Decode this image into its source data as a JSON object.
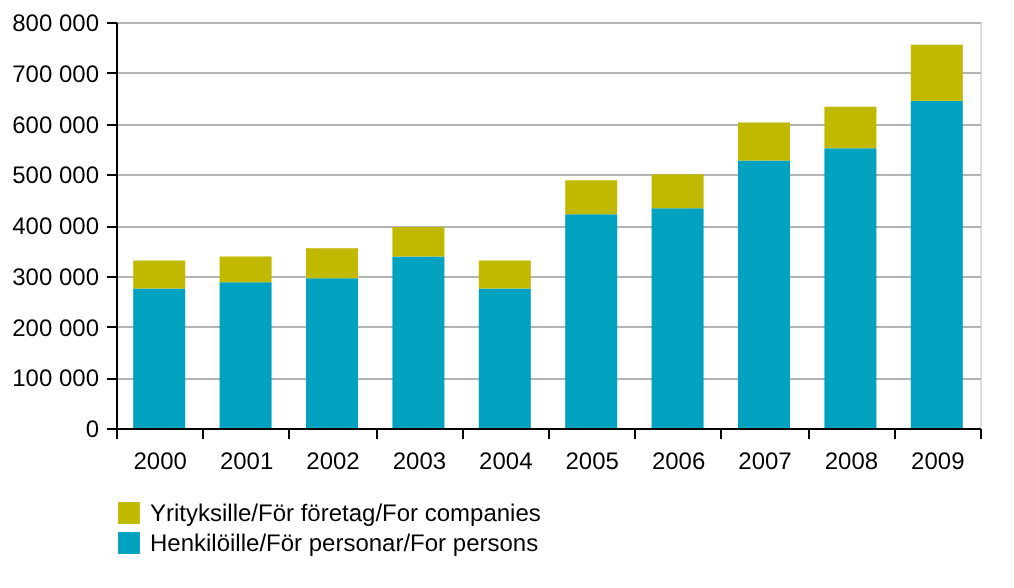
{
  "chart_data": {
    "type": "bar",
    "stacked": true,
    "categories": [
      "2000",
      "2001",
      "2002",
      "2003",
      "2004",
      "2005",
      "2006",
      "2007",
      "2008",
      "2009"
    ],
    "series": [
      {
        "name": "Henkilöille/För personar/For persons",
        "color": "#00a2c0",
        "values": [
          275000,
          287000,
          295000,
          338000,
          275000,
          421000,
          433000,
          527000,
          551000,
          645000
        ]
      },
      {
        "name": "Yrityksille/För företag/For companies",
        "color": "#c0b900",
        "values": [
          55000,
          51000,
          59000,
          58000,
          55000,
          67000,
          67000,
          75000,
          82000,
          110000
        ]
      }
    ],
    "ylim": [
      0,
      800000
    ],
    "yticks": [
      0,
      {
        "value": 100000,
        "label": "100 000"
      },
      {
        "value": 200000,
        "label": "200 000"
      },
      {
        "value": 300000,
        "label": "300 000"
      },
      {
        "value": 400000,
        "label": "400 000"
      },
      {
        "value": 500000,
        "label": "500 000"
      },
      {
        "value": 600000,
        "label": "600 000"
      },
      {
        "value": 700000,
        "label": "700 000"
      },
      {
        "value": 800000,
        "label": "800 000"
      }
    ],
    "grid": "y",
    "legend": "bottom"
  }
}
